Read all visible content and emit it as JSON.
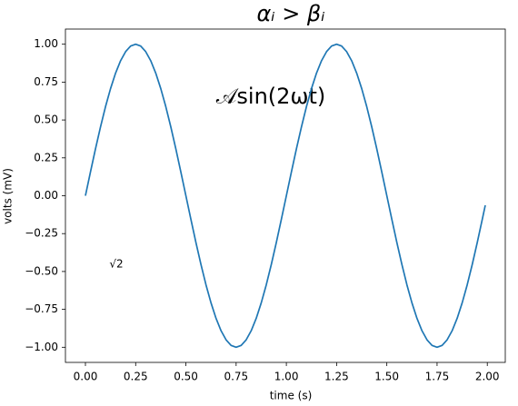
{
  "chart_data": {
    "type": "line",
    "title": "αᵢ > βᵢ",
    "annotations": [
      "𝒜sin(2ωt)",
      "√2"
    ],
    "x_label": "time (s)",
    "y_label": "volts (mV)",
    "x": [
      0,
      0.025,
      0.05,
      0.075,
      0.1,
      0.125,
      0.15,
      0.175,
      0.2,
      0.225,
      0.25,
      0.275,
      0.3,
      0.325,
      0.35,
      0.375,
      0.4,
      0.425,
      0.45,
      0.475,
      0.5,
      0.525,
      0.55,
      0.575,
      0.6,
      0.625,
      0.65,
      0.675,
      0.7,
      0.725,
      0.75,
      0.775,
      0.8,
      0.825,
      0.85,
      0.875,
      0.9,
      0.925,
      0.95,
      0.975,
      1,
      1.025,
      1.05,
      1.075,
      1.1,
      1.125,
      1.15,
      1.175,
      1.2,
      1.225,
      1.25,
      1.275,
      1.3,
      1.325,
      1.35,
      1.375,
      1.4,
      1.425,
      1.45,
      1.475,
      1.5,
      1.525,
      1.55,
      1.575,
      1.6,
      1.625,
      1.65,
      1.675,
      1.7,
      1.725,
      1.75,
      1.775,
      1.8,
      1.825,
      1.85,
      1.875,
      1.9,
      1.925,
      1.95,
      1.975,
      1.99
    ],
    "series": [
      {
        "color": "#1f77b4",
        "values": [
          0,
          0.156,
          0.309,
          0.454,
          0.588,
          0.707,
          0.809,
          0.891,
          0.951,
          0.988,
          1,
          0.988,
          0.951,
          0.891,
          0.809,
          0.707,
          0.588,
          0.454,
          0.309,
          0.156,
          0,
          -0.156,
          -0.309,
          -0.454,
          -0.588,
          -0.707,
          -0.809,
          -0.891,
          -0.951,
          -0.988,
          -1,
          -0.988,
          -0.951,
          -0.891,
          -0.809,
          -0.707,
          -0.588,
          -0.454,
          -0.309,
          -0.156,
          0,
          0.156,
          0.309,
          0.454,
          0.588,
          0.707,
          0.809,
          0.891,
          0.951,
          0.988,
          1,
          0.988,
          0.951,
          0.891,
          0.809,
          0.707,
          0.588,
          0.454,
          0.309,
          0.156,
          0,
          -0.156,
          -0.309,
          -0.454,
          -0.588,
          -0.707,
          -0.809,
          -0.891,
          -0.951,
          -0.988,
          -1,
          -0.988,
          -0.951,
          -0.891,
          -0.809,
          -0.707,
          -0.588,
          -0.454,
          -0.309,
          -0.156,
          -0.063
        ]
      }
    ],
    "xlim": [
      -0.0995,
      2.0895
    ],
    "ylim": [
      -1.1,
      1.1
    ],
    "xticks": [
      {
        "value": 0,
        "label": "0.00"
      },
      {
        "value": 0.25,
        "label": "0.25"
      },
      {
        "value": 0.5,
        "label": "0.50"
      },
      {
        "value": 0.75,
        "label": "0.75"
      },
      {
        "value": 1,
        "label": "1.00"
      },
      {
        "value": 1.25,
        "label": "1.25"
      },
      {
        "value": 1.5,
        "label": "1.50"
      },
      {
        "value": 1.75,
        "label": "1.75"
      },
      {
        "value": 2,
        "label": "2.00"
      }
    ],
    "yticks": [
      {
        "value": -1,
        "label": "−1.00"
      },
      {
        "value": -0.75,
        "label": "−0.75"
      },
      {
        "value": -0.5,
        "label": "−0.50"
      },
      {
        "value": -0.25,
        "label": "−0.25"
      },
      {
        "value": 0,
        "label": "0.00"
      },
      {
        "value": 0.25,
        "label": "0.25"
      },
      {
        "value": 0.5,
        "label": "0.50"
      },
      {
        "value": 0.75,
        "label": "0.75"
      },
      {
        "value": 1,
        "label": "1.00"
      }
    ]
  }
}
